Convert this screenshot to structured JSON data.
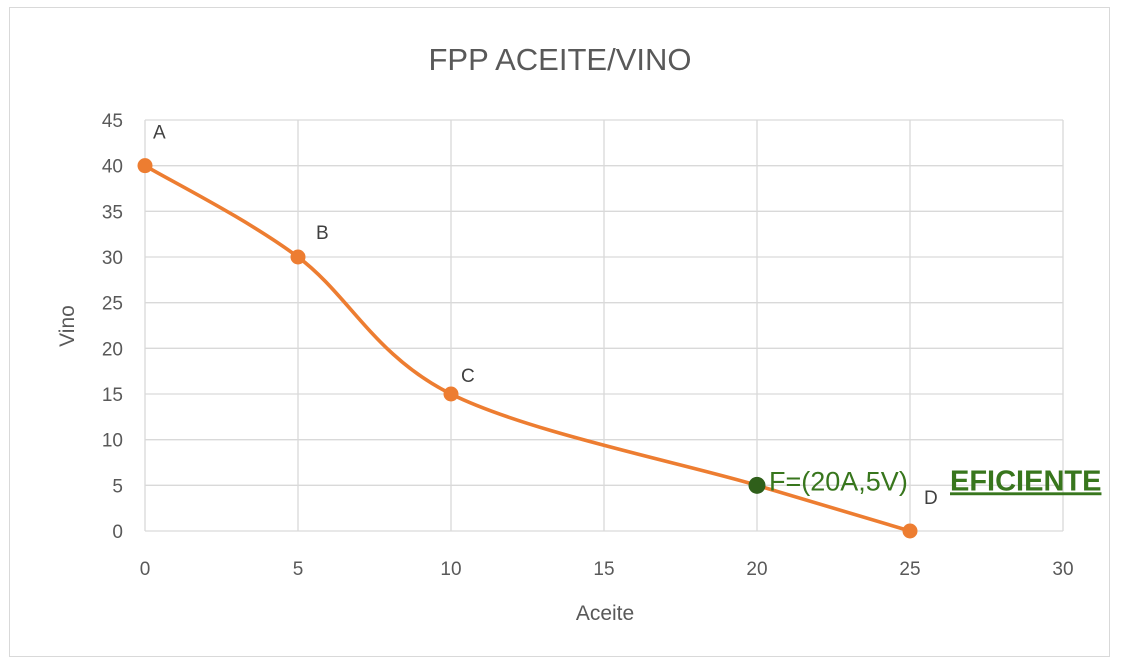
{
  "colors": {
    "series": "#ed7d31",
    "highlight_point": "#2f5f1a",
    "highlight_text": "#38761d",
    "grid": "#d9d9d9",
    "text": "#595959"
  },
  "chart_data": {
    "type": "scatter",
    "title": "FPP ACEITE/VINO",
    "xlabel": "Aceite",
    "ylabel": "Vino",
    "xlim": [
      0,
      30
    ],
    "ylim": [
      0,
      45
    ],
    "x_ticks": [
      "0",
      "5",
      "10",
      "15",
      "20",
      "25",
      "30"
    ],
    "y_ticks": [
      "0",
      "5",
      "10",
      "15",
      "20",
      "25",
      "30",
      "35",
      "40",
      "45"
    ],
    "grid": true,
    "smooth_line": true,
    "series": [
      {
        "points": [
          {
            "label": "A",
            "x": 0,
            "y": 40
          },
          {
            "label": "B",
            "x": 5,
            "y": 30
          },
          {
            "label": "C",
            "x": 10,
            "y": 15
          },
          {
            "label": "D",
            "x": 25,
            "y": 0
          }
        ]
      }
    ],
    "annotation": {
      "x": 20,
      "y": 5,
      "text": "F=(20A,5V)",
      "emphasis": "EFICIENTE"
    }
  }
}
